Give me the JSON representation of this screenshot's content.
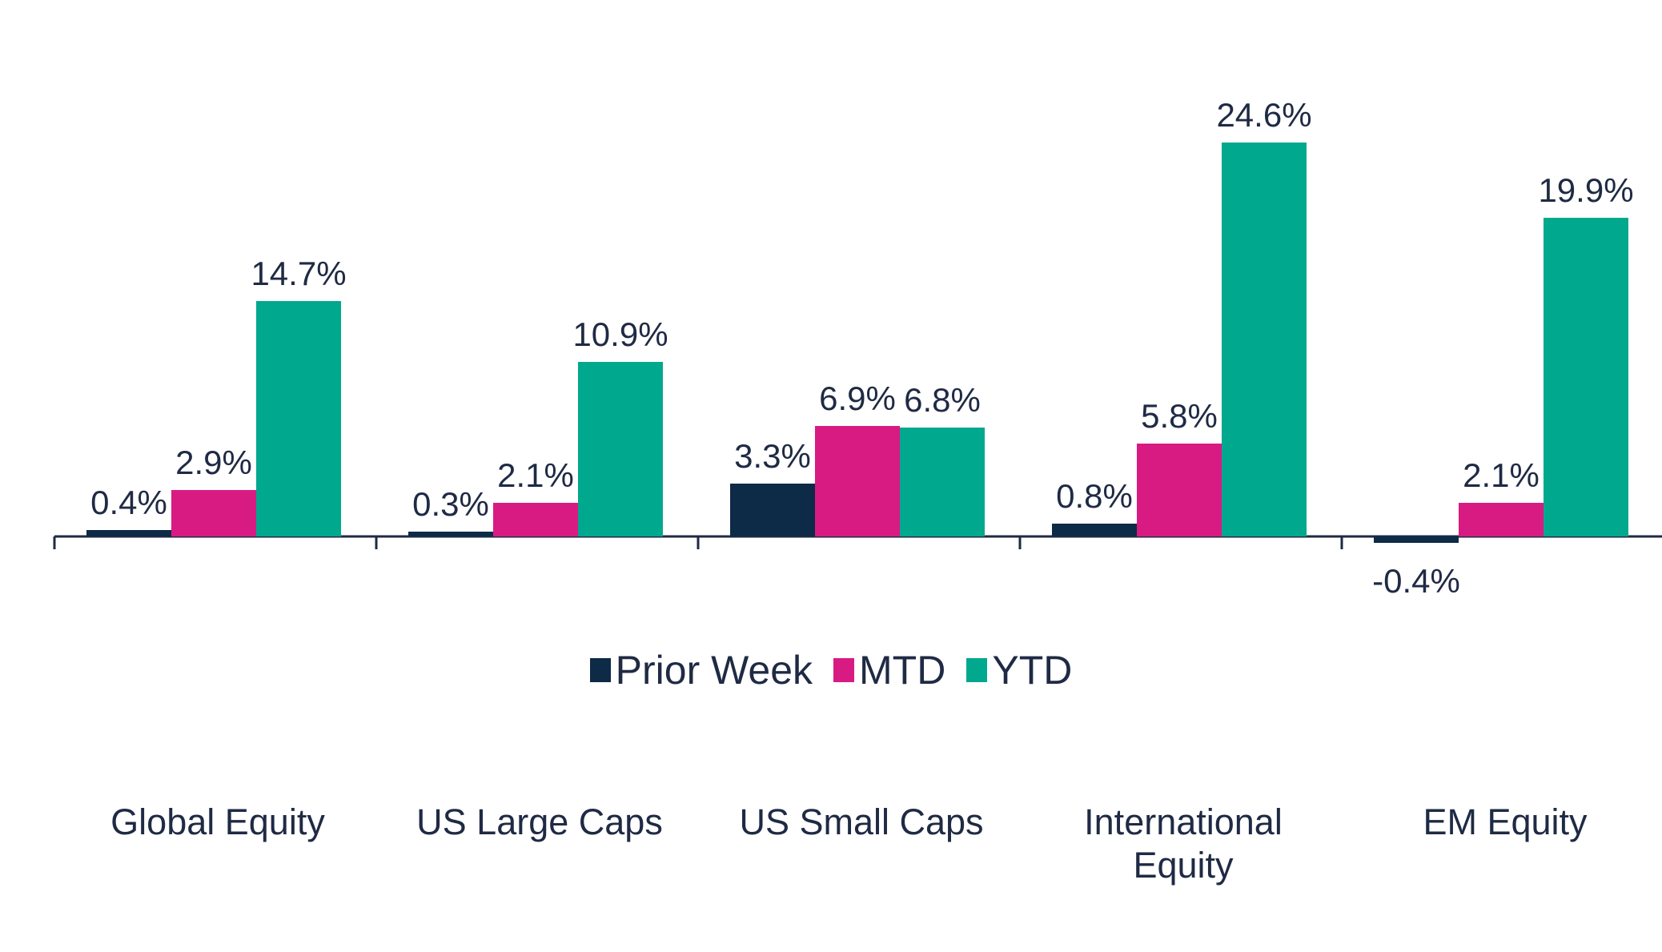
{
  "chart_data": {
    "type": "bar",
    "categories": [
      "Global Equity",
      "US Large Caps",
      "US Small Caps",
      "International\nEquity",
      "EM Equity"
    ],
    "series": [
      {
        "name": "Prior Week",
        "values": [
          0.4,
          0.3,
          3.3,
          0.8,
          -0.4
        ],
        "color": "#0d2a47"
      },
      {
        "name": "MTD",
        "values": [
          2.9,
          2.1,
          6.9,
          5.8,
          2.1
        ],
        "color": "#d81b83"
      },
      {
        "name": "YTD",
        "values": [
          14.7,
          10.9,
          6.8,
          24.6,
          19.9
        ],
        "color": "#00a88e"
      }
    ],
    "data_labels": [
      [
        "0.4%",
        "0.3%",
        "3.3%",
        "0.8%",
        "-0.4%"
      ],
      [
        "2.9%",
        "2.1%",
        "6.9%",
        "5.8%",
        "2.1%"
      ],
      [
        "14.7%",
        "10.9%",
        "6.8%",
        "24.6%",
        "19.9%"
      ]
    ],
    "legend_position": "bottom-center",
    "grid": false,
    "axis_color": "#1f2a44"
  }
}
